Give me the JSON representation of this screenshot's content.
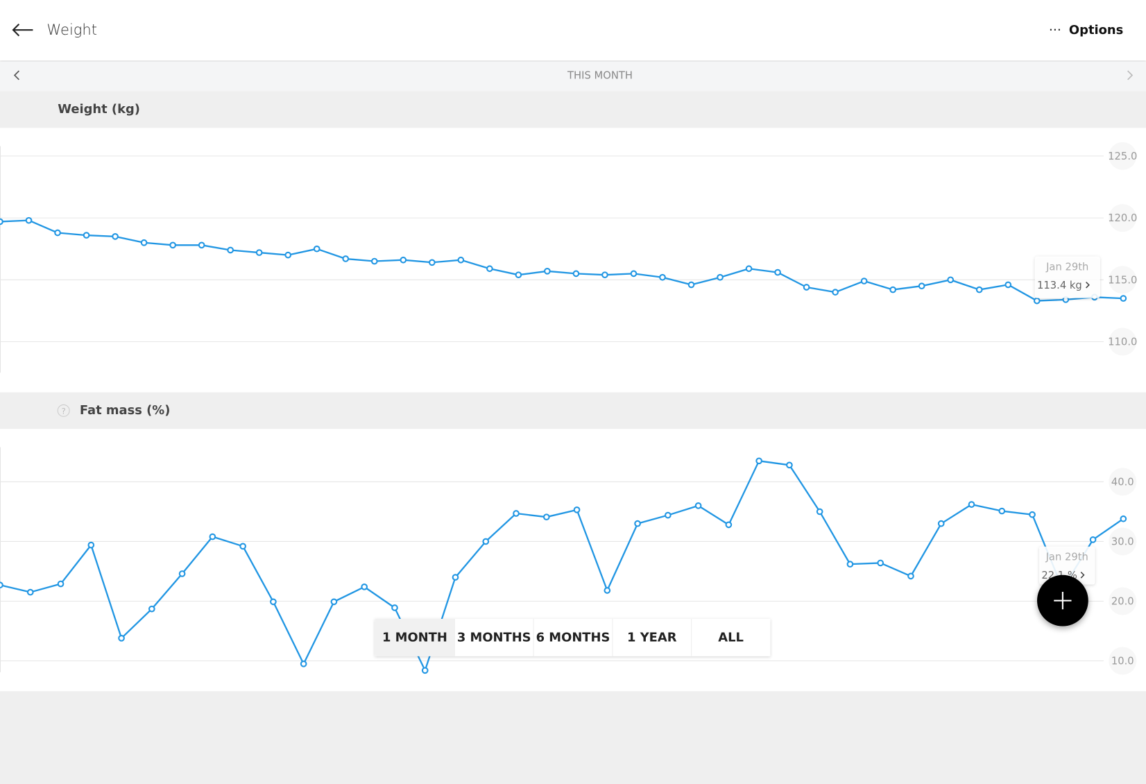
{
  "header": {
    "title": "Weight",
    "options": "Options"
  },
  "period": {
    "label": "THIS MONTH"
  },
  "help_icon": "?",
  "chart_data": [
    {
      "type": "line",
      "title": "Weight (kg)",
      "color": "#2196e3",
      "values": [
        119.7,
        119.8,
        118.8,
        118.6,
        118.5,
        118.0,
        117.8,
        117.8,
        117.4,
        117.2,
        117.0,
        117.5,
        116.7,
        116.5,
        116.6,
        116.4,
        116.6,
        115.9,
        115.4,
        115.7,
        115.5,
        115.4,
        115.5,
        115.2,
        114.6,
        115.2,
        115.9,
        115.6,
        114.4,
        114.0,
        114.9,
        114.2,
        114.5,
        115.0,
        114.2,
        114.6,
        113.3,
        113.4,
        113.6,
        113.5
      ],
      "ylim": [
        107.5,
        125.8
      ],
      "yticks": [
        {
          "value": 110,
          "label": "110.0"
        },
        {
          "value": 115,
          "label": "115.0"
        },
        {
          "value": 120,
          "label": "120.0"
        },
        {
          "value": 125,
          "label": "125.0"
        }
      ],
      "grid": true,
      "tooltip": {
        "date": "Jan 29th",
        "label": "113.4 kg"
      }
    },
    {
      "type": "line",
      "title": "Fat mass (%)",
      "color": "#2196e3",
      "values": [
        22.7,
        21.5,
        22.9,
        29.4,
        13.8,
        18.7,
        24.6,
        30.8,
        29.2,
        19.9,
        9.5,
        19.9,
        22.4,
        18.9,
        8.4,
        24.0,
        30.0,
        34.7,
        34.1,
        35.3,
        21.8,
        33.0,
        34.4,
        36.0,
        32.8,
        43.5,
        42.8,
        35.0,
        26.2,
        26.4,
        24.2,
        33.0,
        36.2,
        35.1,
        34.5,
        22.1,
        30.3,
        33.8
      ],
      "ylim": [
        8.1,
        45.8
      ],
      "yticks": [
        {
          "value": 10,
          "label": "10.0"
        },
        {
          "value": 20,
          "label": "20.0"
        },
        {
          "value": 30,
          "label": "30.0"
        },
        {
          "value": 40,
          "label": "40.0"
        }
      ],
      "grid": true,
      "tooltip": {
        "date": "Jan 29th",
        "label": "22.1 %"
      }
    }
  ],
  "range_buttons": [
    "1 MONTH",
    "3 MONTHS",
    "6 MONTHS",
    "1 YEAR",
    "ALL"
  ]
}
